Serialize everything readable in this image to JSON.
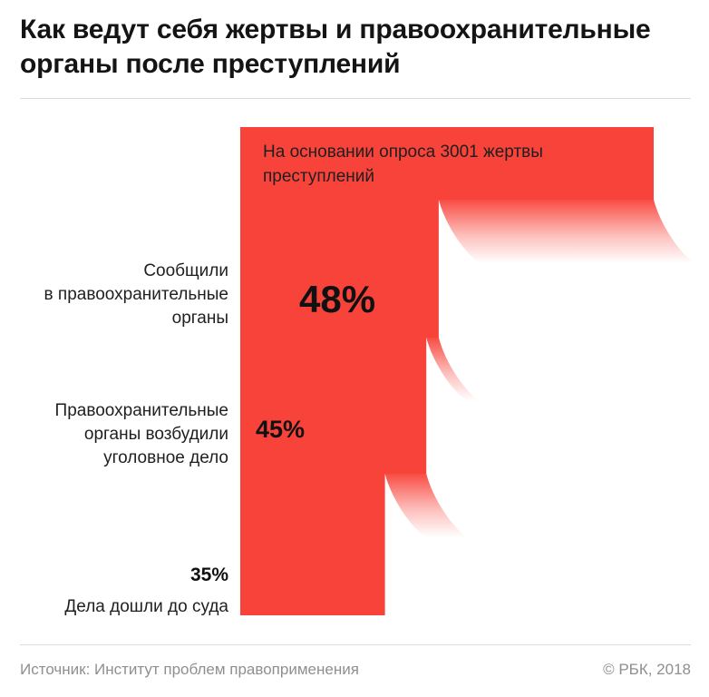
{
  "title": "Как ведут себя жертвы и правоохранительные органы после преступлений",
  "note": "На основании опроса 3001 жертвы преступлений",
  "colors": {
    "accent": "#f8433a",
    "text": "#1a1a1a",
    "muted": "#8f8f8f"
  },
  "chart_data": {
    "type": "bar",
    "title": "Как ведут себя жертвы и правоохранительные органы после преступлений",
    "note": "На основании опроса 3001 жертвы преступлений",
    "total": 100,
    "stages": [
      {
        "label": "Сообщили в правоохранительные органы",
        "value": 48,
        "value_label": "48%"
      },
      {
        "label": "Правоохранительные органы возбудили уголовное дело",
        "value": 45,
        "value_label": "45%"
      },
      {
        "label": "Дела дошли до суда",
        "value": 35,
        "value_label": "35%"
      }
    ]
  },
  "labels": {
    "stage0": [
      "Сообщили",
      "в правоохранительные",
      "органы"
    ],
    "stage1": [
      "Правоохранительные",
      "органы возбудили",
      "уголовное дело"
    ],
    "stage2": "Дела дошли до суда"
  },
  "footer": {
    "source": "Источник: Институт проблем правоприменения",
    "copyright": "© РБК, 2018"
  }
}
